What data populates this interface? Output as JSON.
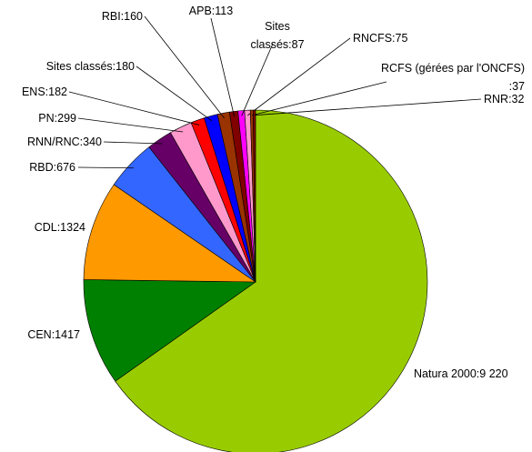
{
  "chart_data": {
    "type": "pie",
    "value_labels": [
      "Natura 2000:9 220",
      "CEN:1417",
      "CDL:1324",
      "RBD:676",
      "RNN/RNC:340",
      "PN:299",
      "ENS:182",
      "Sites classés:180",
      "RBI:160",
      "APB:113",
      "Sites classés:87",
      "RNCFS:75",
      "RCFS (gérées par l'ONCFS) :37",
      "RNR:32"
    ],
    "values": [
      9220,
      1417,
      1324,
      676,
      340,
      299,
      182,
      180,
      160,
      113,
      87,
      75,
      37,
      32
    ],
    "colors": [
      "#99cc00",
      "#008000",
      "#ff9900",
      "#3366ff",
      "#660066",
      "#ff99cc",
      "#ff0000",
      "#0000ff",
      "#993300",
      "#800000",
      "#ff00ff",
      "#ff99cc",
      "#993300",
      "#800000"
    ]
  }
}
